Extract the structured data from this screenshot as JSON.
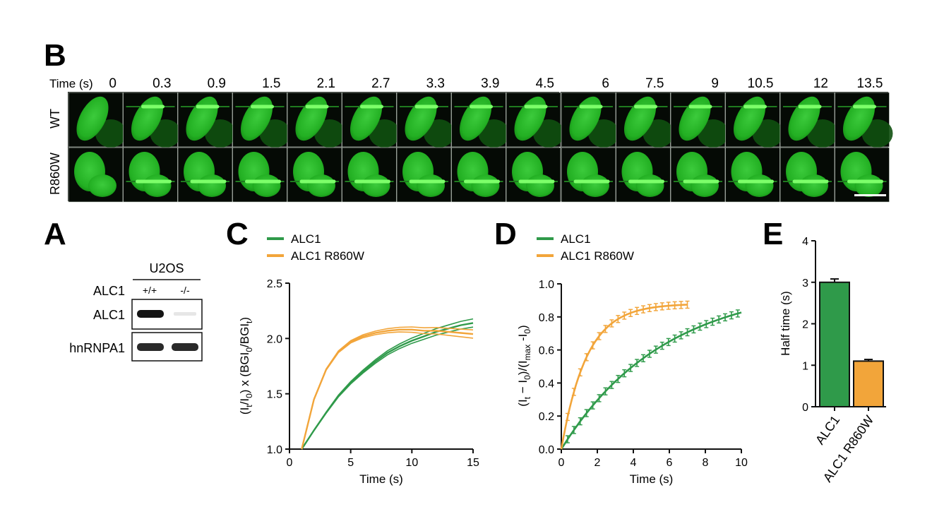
{
  "panels": {
    "A": "A",
    "B": "B",
    "C": "C",
    "D": "D",
    "E": "E"
  },
  "colors": {
    "green": "#2f9a4a",
    "orange": "#f2a53a",
    "cell": "#23b023",
    "cellDark": "#0f500f",
    "bg": "#050a05"
  },
  "panel_b": {
    "time_label": "Time (s)",
    "times_left": [
      "0",
      "0.3",
      "0.9",
      "1.5",
      "2.1",
      "2.7",
      "3.3",
      "3.9",
      "4.5"
    ],
    "times_right": [
      "6",
      "7.5",
      "9",
      "10.5",
      "12",
      "13.5"
    ],
    "rows": [
      "WT",
      "R860W"
    ]
  },
  "panel_a": {
    "cell_line": "U2OS",
    "row_label": "ALC1",
    "genotypes": [
      "+/+",
      "-/-"
    ],
    "bands": [
      "ALC1",
      "hnRNPA1"
    ]
  },
  "chart_data": [
    {
      "id": "C",
      "type": "line",
      "legend": [
        "ALC1",
        "ALC1 R860W"
      ],
      "legend_placement": "top-left",
      "xlabel": "Time (s)",
      "xticks": [
        "0",
        "5",
        "10",
        "15"
      ],
      "yticks": [
        "1.0",
        "1.5",
        "2.0",
        "2.5"
      ],
      "xlim": [
        0,
        15
      ],
      "ylim": [
        1.0,
        2.5
      ],
      "x": [
        1,
        2,
        3,
        4,
        5,
        6,
        7,
        8,
        9,
        10,
        11,
        12,
        13,
        14,
        15
      ],
      "series": [
        {
          "name": "ALC1",
          "color": "green",
          "mean": [
            1.0,
            1.17,
            1.33,
            1.48,
            1.6,
            1.7,
            1.79,
            1.87,
            1.93,
            1.98,
            2.02,
            2.06,
            2.09,
            2.12,
            2.14
          ],
          "sem": 0.04
        },
        {
          "name": "ALC1 R860W",
          "color": "orange",
          "mean": [
            1.0,
            1.45,
            1.72,
            1.88,
            1.97,
            2.02,
            2.05,
            2.07,
            2.08,
            2.08,
            2.07,
            2.07,
            2.06,
            2.05,
            2.04
          ],
          "sem": 0.04
        }
      ]
    },
    {
      "id": "D",
      "type": "line",
      "legend": [
        "ALC1",
        "ALC1 R860W"
      ],
      "legend_placement": "top-left",
      "xlabel": "Time (s)",
      "xticks": [
        "0",
        "2",
        "4",
        "6",
        "8",
        "10"
      ],
      "yticks": [
        "0.0",
        "0.2",
        "0.4",
        "0.6",
        "0.8",
        "1.0"
      ],
      "xlim": [
        0,
        10
      ],
      "ylim": [
        0.0,
        1.0
      ],
      "series": [
        {
          "name": "ALC1",
          "color": "green",
          "tau": 5.7,
          "plateau": 1.0,
          "xmax": 10
        },
        {
          "name": "ALC1 R860W",
          "color": "orange",
          "tau": 1.4,
          "plateau": 0.88,
          "xmax": 7
        }
      ]
    },
    {
      "id": "E",
      "type": "bar",
      "ylabel": "Half time (s)",
      "categories": [
        "ALC1",
        "ALC1 R860W"
      ],
      "values": [
        3.0,
        1.1
      ],
      "errors": [
        0.08,
        0.04
      ],
      "yticks": [
        "0",
        "1",
        "2",
        "3",
        "4"
      ],
      "ylim": [
        0,
        4
      ]
    }
  ]
}
